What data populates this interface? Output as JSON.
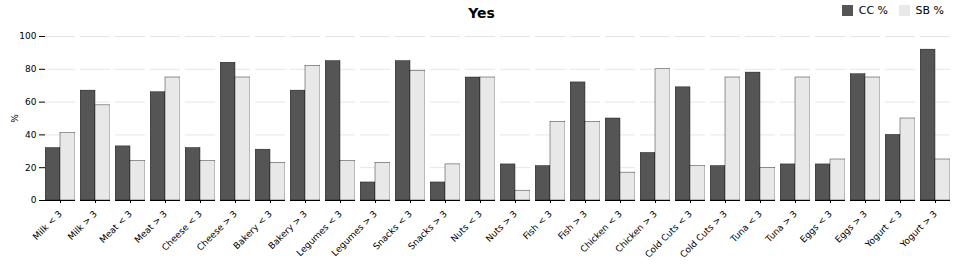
{
  "chart_data": {
    "type": "bar",
    "title": "Yes",
    "ylabel": "%",
    "categories": [
      "Milk < 3",
      "Milk > 3",
      "Meat < 3",
      "Meat > 3",
      "Cheese < 3",
      "Cheese > 3",
      "Bakery < 3",
      "Bakery > 3",
      "Legumes < 3",
      "Legumes > 3",
      "Snacks < 3",
      "Snacks > 3",
      "Nuts < 3",
      "Nuts > 3",
      "Fish < 3",
      "Fish > 3",
      "Chicken < 3",
      "Chicken > 3",
      "Cold Cuts < 3",
      "Cold Cuts > 3",
      "Tuna < 3",
      "Tuna > 3",
      "Eggs < 3",
      "Eggs > 3",
      "Yogurt < 3",
      "Yogurt > 3"
    ],
    "series": [
      {
        "name": "CC %",
        "color": "#555555",
        "values": [
          32,
          67,
          33,
          66,
          32,
          84,
          31,
          67,
          85,
          11,
          85,
          11,
          75,
          22,
          21,
          72,
          50,
          29,
          69,
          21,
          78,
          22,
          22,
          77,
          40,
          92
        ]
      },
      {
        "name": "SB %",
        "color": "#e8e8e8",
        "values": [
          41,
          58,
          24,
          75,
          24,
          75,
          23,
          82,
          24,
          23,
          79,
          22,
          75,
          6,
          48,
          48,
          17,
          80,
          21,
          75,
          20,
          75,
          25,
          75,
          50,
          25
        ]
      }
    ],
    "ylim": [
      0,
      100
    ],
    "yticks": [
      0,
      20,
      40,
      60,
      80,
      100
    ],
    "grid": true,
    "legend": "upper right"
  }
}
